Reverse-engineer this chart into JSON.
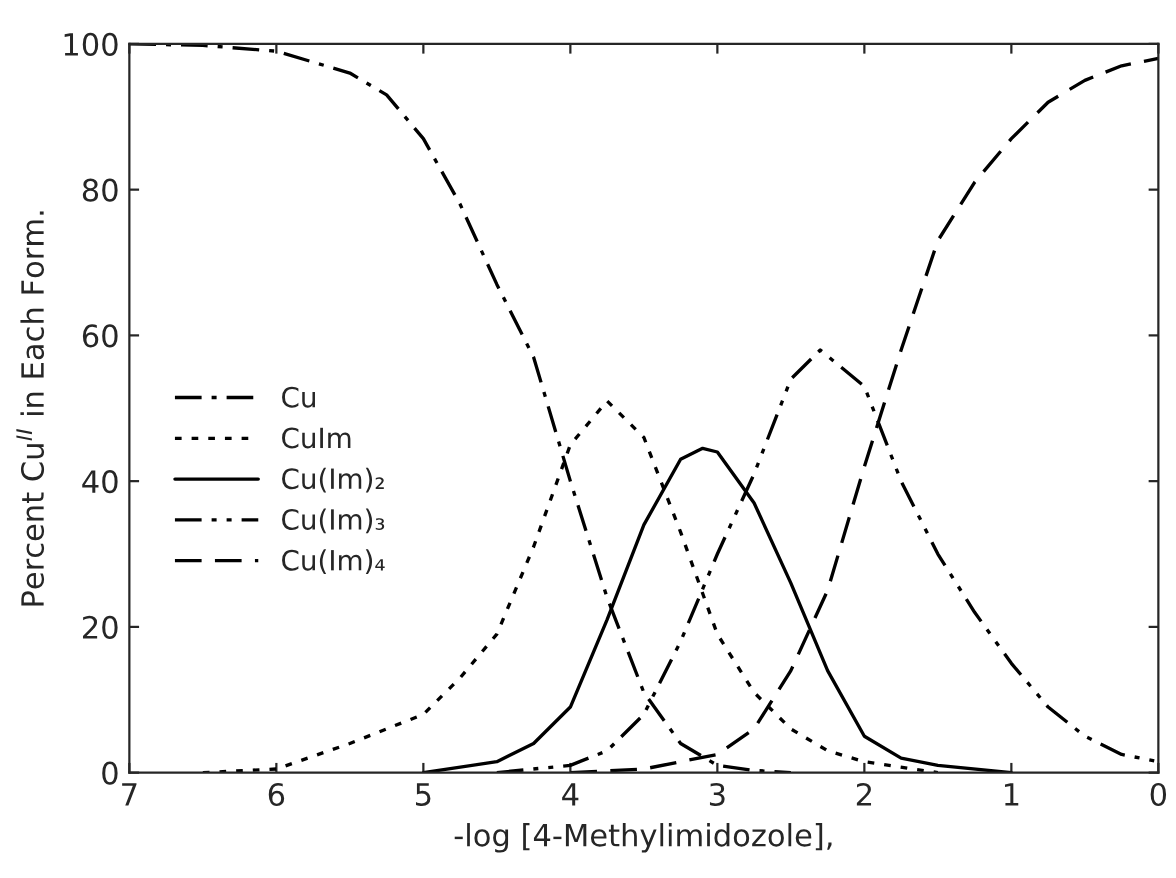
{
  "chart_data": {
    "type": "line",
    "xlabel": "-log [4-Methylimidozole],",
    "ylabel": "Percent Cu$^{II}$ in Each Form.",
    "xlim": [
      7,
      0
    ],
    "ylim": [
      0,
      100
    ],
    "xticks": [
      7,
      6,
      5,
      4,
      3,
      2,
      1,
      0
    ],
    "yticks": [
      0,
      20,
      40,
      60,
      80,
      100
    ],
    "grid": false,
    "legend": "left",
    "marker": "none",
    "series": [
      {
        "name": "Cu",
        "color": "#000000",
        "line_style": "dashdot",
        "x": [
          7,
          6.5,
          6,
          5.5,
          5.25,
          5,
          4.75,
          4.5,
          4.25,
          4.0,
          3.75,
          3.5,
          3.25,
          3.0,
          2.75,
          2.5
        ],
        "values": [
          100,
          99.8,
          99,
          96,
          93,
          87,
          78,
          67,
          57,
          40,
          24,
          11,
          4,
          1,
          0.3,
          0
        ]
      },
      {
        "name": "CuIm",
        "color": "#000000",
        "line_style": "dotted",
        "x": [
          6.5,
          6,
          5.5,
          5,
          4.75,
          4.5,
          4.25,
          4.0,
          3.75,
          3.5,
          3.25,
          3.0,
          2.75,
          2.5,
          2.25,
          2,
          1.5
        ],
        "values": [
          0,
          0.5,
          4,
          8,
          13,
          19,
          31,
          45,
          51,
          46,
          33,
          19,
          11,
          6,
          3,
          1.5,
          0
        ]
      },
      {
        "name": "Cu(Im)₂",
        "color": "#000000",
        "line_style": "solid",
        "x": [
          5,
          4.5,
          4.25,
          4.0,
          3.75,
          3.5,
          3.25,
          3.1,
          3.0,
          2.75,
          2.5,
          2.25,
          2.0,
          1.75,
          1.5,
          1.0
        ],
        "values": [
          0,
          1.5,
          4,
          9,
          21,
          34,
          43,
          44.5,
          44,
          37,
          26,
          14,
          5,
          2,
          1,
          0
        ]
      },
      {
        "name": "Cu(Im)₃",
        "color": "#000000",
        "line_style": "dashdotdot",
        "x": [
          4.5,
          4,
          3.75,
          3.5,
          3.25,
          3.0,
          2.75,
          2.5,
          2.3,
          2.0,
          1.75,
          1.5,
          1.25,
          1.0,
          0.75,
          0.5,
          0.25,
          0
        ],
        "values": [
          0,
          1,
          3,
          8,
          18,
          30,
          41,
          54,
          58,
          53,
          40,
          30,
          22,
          15,
          9,
          5,
          2.5,
          1.5
        ]
      },
      {
        "name": "Cu(Im)₄",
        "color": "#000000",
        "line_style": "dashed",
        "x": [
          4.0,
          3.5,
          3.0,
          2.75,
          2.5,
          2.25,
          2.0,
          1.75,
          1.5,
          1.25,
          1.0,
          0.75,
          0.5,
          0.25,
          0
        ],
        "values": [
          0,
          0.5,
          2.5,
          6,
          14,
          25,
          42,
          58,
          73,
          81,
          87,
          92,
          95,
          97,
          98
        ]
      }
    ]
  }
}
